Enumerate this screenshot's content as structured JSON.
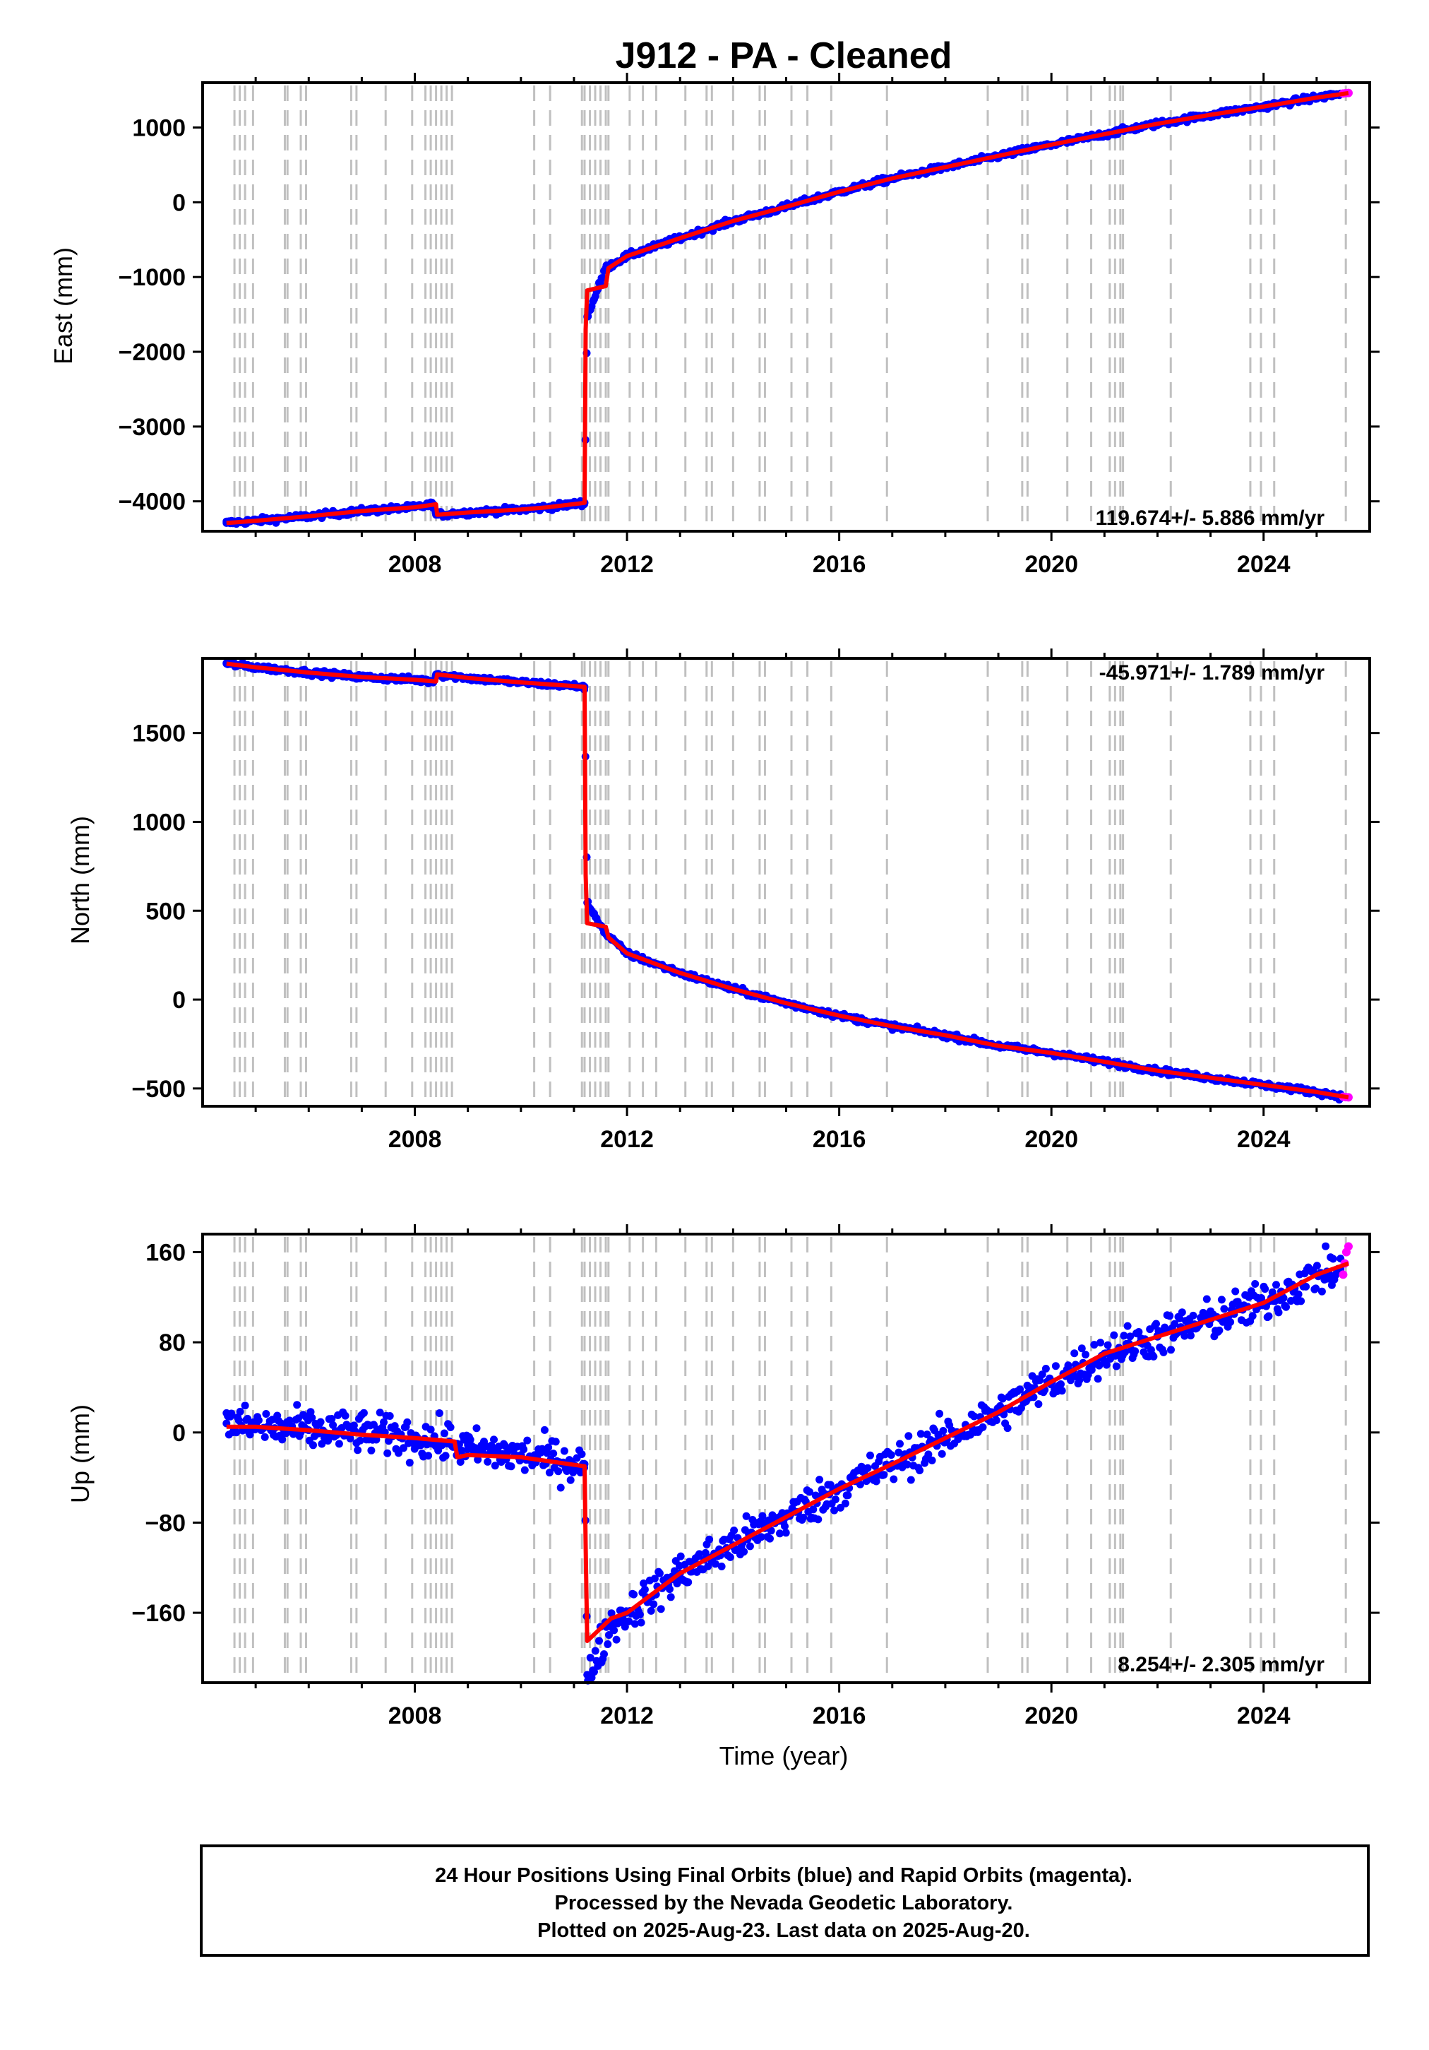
{
  "title": "J912  - PA - Cleaned",
  "x_axis_label": "Time (year)",
  "colors": {
    "final_orbits": "#0000ff",
    "rapid_orbits": "#ff00ff",
    "model": "#ff0000",
    "events": "#c0c0c0",
    "frame": "#000000"
  },
  "footer": {
    "line1": "24 Hour Positions Using Final Orbits (blue) and Rapid Orbits (magenta).",
    "line2": "Processed by the Nevada Geodetic Laboratory.",
    "line3": "Plotted on 2025-Aug-23. Last data on 2025-Aug-20."
  },
  "chart_data": [
    {
      "type": "scatter",
      "component": "East",
      "ylabel": "East (mm)",
      "rate_label": "119.674+/- 5.886 mm/yr",
      "xlim": [
        2004.0,
        2026.0
      ],
      "ylim": [
        -4400,
        1600
      ],
      "x_ticks": [
        2008,
        2012,
        2016,
        2020,
        2024
      ],
      "y_ticks": [
        -4000,
        -3000,
        -2000,
        -1000,
        0,
        1000
      ],
      "y_tick_labels": [
        "−4000",
        "−3000",
        "−2000",
        "−1000",
        "0",
        "1000"
      ],
      "series": [
        {
          "name": "Final Orbits",
          "color": "#0000ff",
          "x": [
            2004.45,
            2005.0,
            2006.0,
            2007.0,
            2008.0,
            2008.35,
            2008.4,
            2009.0,
            2010.0,
            2010.5,
            2011.2,
            2011.25,
            2011.6,
            2012.0,
            2013.0,
            2014.0,
            2015.0,
            2016.0,
            2017.0,
            2018.0,
            2019.0,
            2020.0,
            2021.0,
            2022.0,
            2023.0,
            2024.0,
            2025.0,
            2025.45
          ],
          "y": [
            -4290,
            -4260,
            -4200,
            -4130,
            -4080,
            -4040,
            -4180,
            -4150,
            -4110,
            -4080,
            -4020,
            -1530,
            -880,
            -720,
            -480,
            -250,
            -60,
            140,
            320,
            470,
            620,
            770,
            910,
            1050,
            1170,
            1280,
            1400,
            1450
          ]
        },
        {
          "name": "Rapid Orbits",
          "color": "#ff00ff",
          "x": [
            2025.5,
            2025.55,
            2025.6
          ],
          "y": [
            1455,
            1460,
            1462
          ]
        }
      ],
      "model": {
        "color": "#ff0000",
        "x": [
          2004.45,
          2005.0,
          2006.0,
          2007.0,
          2008.0,
          2008.4,
          2008.42,
          2009.0,
          2010.0,
          2010.5,
          2011.2,
          2011.22,
          2011.25,
          2011.6,
          2011.65,
          2012.0,
          2013.0,
          2014.0,
          2015.0,
          2016.0,
          2017.0,
          2018.0,
          2019.0,
          2020.0,
          2021.0,
          2022.0,
          2023.0,
          2024.0,
          2025.0,
          2025.6
        ],
        "y": [
          -4290,
          -4260,
          -4200,
          -4130,
          -4080,
          -4040,
          -4180,
          -4150,
          -4110,
          -4080,
          -4020,
          -1700,
          -1180,
          -1120,
          -880,
          -720,
          -480,
          -250,
          -60,
          140,
          320,
          470,
          620,
          770,
          910,
          1050,
          1170,
          1280,
          1400,
          1460
        ]
      },
      "scatter_noise": 20
    },
    {
      "type": "scatter",
      "component": "North",
      "ylabel": "North (mm)",
      "rate_label": "-45.971+/- 1.789 mm/yr",
      "xlim": [
        2004.0,
        2026.0
      ],
      "ylim": [
        -600,
        1920
      ],
      "x_ticks": [
        2008,
        2012,
        2016,
        2020,
        2024
      ],
      "y_ticks": [
        -500,
        0,
        500,
        1000,
        1500
      ],
      "y_tick_labels": [
        "−500",
        "0",
        "500",
        "1000",
        "1500"
      ],
      "series": [
        {
          "name": "Final Orbits",
          "color": "#0000ff",
          "x": [
            2004.45,
            2005.0,
            2006.0,
            2007.0,
            2008.0,
            2008.35,
            2008.4,
            2009.0,
            2010.0,
            2011.2,
            2011.25,
            2011.6,
            2012.0,
            2013.0,
            2014.0,
            2015.0,
            2016.0,
            2017.0,
            2018.0,
            2019.0,
            2020.0,
            2021.0,
            2022.0,
            2023.0,
            2024.0,
            2025.0,
            2025.45
          ],
          "y": [
            1890,
            1870,
            1840,
            1815,
            1800,
            1790,
            1830,
            1810,
            1785,
            1760,
            545,
            370,
            260,
            150,
            60,
            -20,
            -90,
            -150,
            -200,
            -260,
            -300,
            -350,
            -400,
            -440,
            -480,
            -520,
            -545
          ]
        },
        {
          "name": "Rapid Orbits",
          "color": "#ff00ff",
          "x": [
            2025.5,
            2025.55,
            2025.6
          ],
          "y": [
            -547,
            -549,
            -550
          ]
        }
      ],
      "model": {
        "color": "#ff0000",
        "x": [
          2004.45,
          2005.0,
          2006.0,
          2007.0,
          2008.0,
          2008.4,
          2008.42,
          2009.0,
          2010.0,
          2011.2,
          2011.22,
          2011.25,
          2011.6,
          2011.65,
          2012.0,
          2013.0,
          2014.0,
          2015.0,
          2016.0,
          2017.0,
          2018.0,
          2019.0,
          2020.0,
          2021.0,
          2022.0,
          2023.0,
          2024.0,
          2025.0,
          2025.6
        ],
        "y": [
          1890,
          1870,
          1840,
          1815,
          1800,
          1790,
          1830,
          1810,
          1785,
          1760,
          700,
          430,
          410,
          350,
          260,
          150,
          60,
          -20,
          -90,
          -150,
          -200,
          -260,
          -300,
          -350,
          -400,
          -440,
          -480,
          -520,
          -550
        ]
      },
      "scatter_noise": 8
    },
    {
      "type": "scatter",
      "component": "Up",
      "ylabel": "Up (mm)",
      "rate_label": "8.254+/- 2.305 mm/yr",
      "xlim": [
        2004.0,
        2026.0
      ],
      "ylim": [
        -222,
        176
      ],
      "x_ticks": [
        2008,
        2012,
        2016,
        2020,
        2024
      ],
      "y_ticks": [
        -160,
        -80,
        0,
        80,
        160
      ],
      "y_tick_labels": [
        "−160",
        "−80",
        "0",
        "80",
        "160"
      ],
      "series": [
        {
          "name": "Final Orbits",
          "color": "#0000ff",
          "x": [
            2004.45,
            2005.0,
            2006.0,
            2007.0,
            2008.0,
            2008.8,
            2009.0,
            2010.0,
            2011.2,
            2011.25,
            2011.7,
            2012.0,
            2013.0,
            2014.0,
            2015.0,
            2016.0,
            2017.0,
            2018.0,
            2019.0,
            2020.0,
            2021.0,
            2022.0,
            2023.0,
            2024.0,
            2025.0,
            2025.45
          ],
          "y": [
            8,
            5,
            2,
            0,
            -5,
            -10,
            -15,
            -20,
            -28,
            -215,
            -170,
            -160,
            -125,
            -100,
            -75,
            -50,
            -28,
            -5,
            18,
            45,
            70,
            85,
            100,
            115,
            140,
            145
          ]
        },
        {
          "name": "Rapid Orbits",
          "color": "#ff00ff",
          "x": [
            2025.5,
            2025.53,
            2025.56,
            2025.6
          ],
          "y": [
            140,
            150,
            160,
            165
          ]
        }
      ],
      "model": {
        "color": "#ff0000",
        "x": [
          2004.45,
          2005.0,
          2006.0,
          2007.0,
          2008.0,
          2008.75,
          2008.8,
          2009.0,
          2010.0,
          2011.2,
          2011.22,
          2011.25,
          2011.7,
          2012.0,
          2013.0,
          2014.0,
          2015.0,
          2016.0,
          2017.0,
          2018.0,
          2019.0,
          2020.0,
          2021.0,
          2022.0,
          2023.0,
          2024.0,
          2025.0,
          2025.6
        ],
        "y": [
          5,
          5,
          2,
          -2,
          -5,
          -8,
          -22,
          -20,
          -22,
          -30,
          -100,
          -185,
          -165,
          -160,
          -125,
          -100,
          -75,
          -50,
          -28,
          -5,
          18,
          45,
          70,
          85,
          100,
          115,
          140,
          150
        ]
      },
      "scatter_noise": 9
    }
  ],
  "event_lines": [
    2004.6,
    2004.7,
    2004.8,
    2004.95,
    2005.55,
    2005.6,
    2005.85,
    2005.95,
    2006.8,
    2006.9,
    2007.45,
    2007.95,
    2008.2,
    2008.3,
    2008.4,
    2008.5,
    2008.6,
    2008.7,
    2010.25,
    2010.55,
    2011.15,
    2011.2,
    2011.3,
    2011.4,
    2011.5,
    2011.6,
    2011.65,
    2012.05,
    2012.3,
    2012.55,
    2013.1,
    2013.5,
    2013.6,
    2014.0,
    2014.5,
    2014.6,
    2015.1,
    2015.4,
    2015.85,
    2016.9,
    2018.8,
    2019.45,
    2019.55,
    2020.3,
    2020.75,
    2021.1,
    2021.2,
    2021.3,
    2021.35,
    2022.25,
    2023.75,
    2023.95,
    2024.2,
    2025.55
  ]
}
